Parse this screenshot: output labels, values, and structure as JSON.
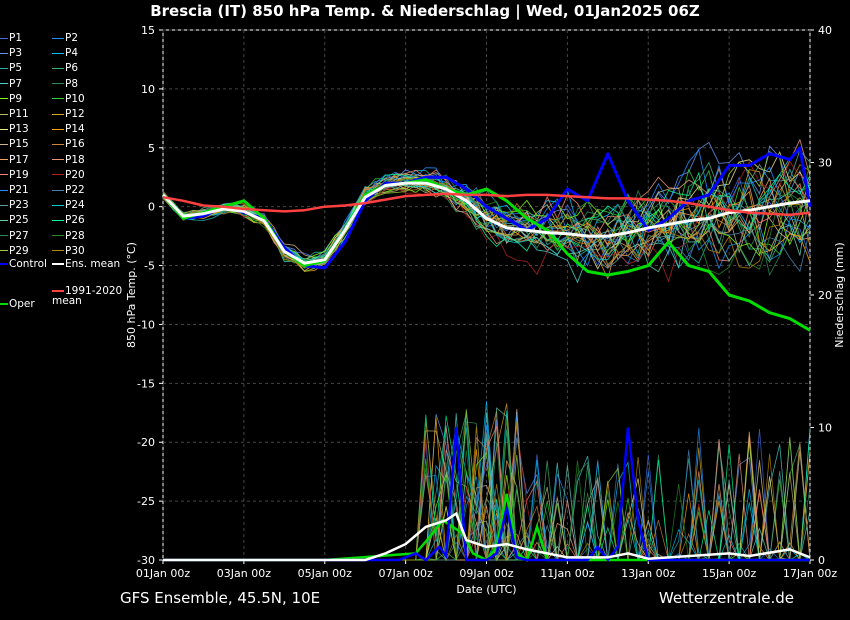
{
  "title": "Brescia  (IT)  850 hPa Temp. & Niederschlag | Wed, 01Jan2025 06Z",
  "footer_left": "GFS Ensemble, 45.5N, 10E",
  "footer_right": "Wetterzentrale.de",
  "chart_data": {
    "type": "line",
    "y_left_label": "850 hPa Temp. (°C)",
    "y_right_label": "Niederschlag (mm)",
    "x_label": "Date (UTC)",
    "y_left_range": [
      -30,
      15
    ],
    "y_left_ticks": [
      15,
      10,
      5,
      0,
      -5,
      -10,
      -15,
      -20,
      -25,
      -30
    ],
    "y_right_range": [
      0,
      40
    ],
    "y_right_ticks": [
      40,
      30,
      20,
      10,
      0
    ],
    "x_range_hours": [
      0,
      384
    ],
    "x_ticks": [
      {
        "h": 0,
        "label": "01Jan 00z"
      },
      {
        "h": 48,
        "label": "03Jan 00z"
      },
      {
        "h": 96,
        "label": "05Jan 00z"
      },
      {
        "h": 144,
        "label": "07Jan 00z"
      },
      {
        "h": 192,
        "label": "09Jan 00z"
      },
      {
        "h": 240,
        "label": "11Jan 00z"
      },
      {
        "h": 288,
        "label": "13Jan 00z"
      },
      {
        "h": 336,
        "label": "15Jan 00z"
      },
      {
        "h": 384,
        "label": "17Jan 00z"
      }
    ],
    "grid": true,
    "legend_position": "left",
    "members": [
      {
        "name": "P1",
        "color": "#4169e1"
      },
      {
        "name": "P2",
        "color": "#1e90ff"
      },
      {
        "name": "P3",
        "color": "#6495ed"
      },
      {
        "name": "P4",
        "color": "#00bfff"
      },
      {
        "name": "P5",
        "color": "#20b2aa"
      },
      {
        "name": "P6",
        "color": "#3cb371"
      },
      {
        "name": "P7",
        "color": "#48d1cc"
      },
      {
        "name": "P8",
        "color": "#2e8b57"
      },
      {
        "name": "P9",
        "color": "#7fff00"
      },
      {
        "name": "P10",
        "color": "#32cd32"
      },
      {
        "name": "P11",
        "color": "#bdb76b"
      },
      {
        "name": "P12",
        "color": "#daa520"
      },
      {
        "name": "P13",
        "color": "#f0e68c"
      },
      {
        "name": "P14",
        "color": "#ffa500"
      },
      {
        "name": "P15",
        "color": "#d2b48c"
      },
      {
        "name": "P16",
        "color": "#cd853f"
      },
      {
        "name": "P17",
        "color": "#f4a460"
      },
      {
        "name": "P18",
        "color": "#e9967a"
      },
      {
        "name": "P19",
        "color": "#fa8072"
      },
      {
        "name": "P20",
        "color": "#b22222"
      },
      {
        "name": "P21",
        "color": "#1e90ff"
      },
      {
        "name": "P22",
        "color": "#4682b4"
      },
      {
        "name": "P23",
        "color": "#5f9ea0"
      },
      {
        "name": "P24",
        "color": "#00ced1"
      },
      {
        "name": "P25",
        "color": "#66cdaa"
      },
      {
        "name": "P26",
        "color": "#00fa9a"
      },
      {
        "name": "P27",
        "color": "#2e8b57"
      },
      {
        "name": "P28",
        "color": "#228b22"
      },
      {
        "name": "P29",
        "color": "#9acd32"
      },
      {
        "name": "P30",
        "color": "#b8860b"
      }
    ],
    "special_legend": [
      {
        "name": "Control",
        "color": "#0000ff"
      },
      {
        "name": "Ens. mean",
        "color": "#ffffff"
      },
      {
        "name": "Oper",
        "color": "#00dd00"
      },
      {
        "name": "1991-2020 mean",
        "color": "#ff4040"
      }
    ],
    "series": [
      {
        "name": "Control",
        "color": "#0000ff",
        "width": 3,
        "points": [
          [
            0,
            1
          ],
          [
            12,
            -1
          ],
          [
            24,
            -0.8
          ],
          [
            36,
            0
          ],
          [
            48,
            -0.5
          ],
          [
            60,
            -1
          ],
          [
            72,
            -3.5
          ],
          [
            84,
            -5
          ],
          [
            96,
            -5.2
          ],
          [
            108,
            -3
          ],
          [
            120,
            0.5
          ],
          [
            132,
            2
          ],
          [
            144,
            2
          ],
          [
            156,
            2.5
          ],
          [
            168,
            2.5
          ],
          [
            180,
            1.5
          ],
          [
            192,
            0
          ],
          [
            204,
            -1
          ],
          [
            216,
            -2
          ],
          [
            228,
            -1
          ],
          [
            240,
            1.5
          ],
          [
            252,
            0.5
          ],
          [
            264,
            4.5
          ],
          [
            276,
            0.5
          ],
          [
            288,
            -2
          ],
          [
            300,
            -1
          ],
          [
            312,
            0.5
          ],
          [
            324,
            1
          ],
          [
            336,
            3.5
          ],
          [
            348,
            3.5
          ],
          [
            360,
            4.5
          ],
          [
            372,
            4
          ],
          [
            378,
            5
          ],
          [
            384,
            0
          ]
        ]
      },
      {
        "name": "Oper",
        "color": "#00dd00",
        "width": 3,
        "points": [
          [
            0,
            1
          ],
          [
            12,
            -1
          ],
          [
            24,
            -0.5
          ],
          [
            36,
            0
          ],
          [
            48,
            0.5
          ],
          [
            60,
            -1
          ],
          [
            72,
            -3.8
          ],
          [
            84,
            -5
          ],
          [
            96,
            -4.6
          ],
          [
            108,
            -2
          ],
          [
            120,
            1
          ],
          [
            132,
            1.8
          ],
          [
            144,
            2
          ],
          [
            156,
            2.3
          ],
          [
            168,
            1.5
          ],
          [
            180,
            1
          ],
          [
            192,
            1.5
          ],
          [
            204,
            0.5
          ],
          [
            216,
            -1
          ],
          [
            228,
            -2
          ],
          [
            240,
            -4
          ],
          [
            252,
            -5.5
          ],
          [
            264,
            -5.8
          ],
          [
            276,
            -5.5
          ],
          [
            288,
            -5
          ],
          [
            300,
            -3
          ],
          [
            312,
            -5
          ],
          [
            324,
            -5.5
          ],
          [
            336,
            -7.5
          ],
          [
            348,
            -8
          ],
          [
            360,
            -9
          ],
          [
            372,
            -9.5
          ],
          [
            384,
            -10.5
          ]
        ]
      },
      {
        "name": "Ens. mean",
        "color": "#ffffff",
        "width": 3,
        "points": [
          [
            0,
            1
          ],
          [
            12,
            -0.8
          ],
          [
            24,
            -0.6
          ],
          [
            36,
            -0.2
          ],
          [
            48,
            -0.4
          ],
          [
            60,
            -1.2
          ],
          [
            72,
            -3.8
          ],
          [
            84,
            -4.8
          ],
          [
            96,
            -4.5
          ],
          [
            108,
            -2
          ],
          [
            120,
            0.8
          ],
          [
            132,
            1.8
          ],
          [
            144,
            2
          ],
          [
            156,
            2
          ],
          [
            168,
            1.5
          ],
          [
            180,
            0.5
          ],
          [
            192,
            -1
          ],
          [
            204,
            -1.8
          ],
          [
            216,
            -2
          ],
          [
            228,
            -2.2
          ],
          [
            240,
            -2.3
          ],
          [
            252,
            -2.5
          ],
          [
            264,
            -2.5
          ],
          [
            276,
            -2.2
          ],
          [
            288,
            -1.8
          ],
          [
            300,
            -1.5
          ],
          [
            312,
            -1.2
          ],
          [
            324,
            -1
          ],
          [
            336,
            -0.5
          ],
          [
            348,
            -0.3
          ],
          [
            360,
            0
          ],
          [
            372,
            0.3
          ],
          [
            384,
            0.5
          ]
        ]
      },
      {
        "name": "1991-2020 mean",
        "color": "#ff4040",
        "width": 2.5,
        "points": [
          [
            0,
            0.8
          ],
          [
            12,
            0.5
          ],
          [
            24,
            0.1
          ],
          [
            36,
            0
          ],
          [
            48,
            -0.2
          ],
          [
            60,
            -0.3
          ],
          [
            72,
            -0.4
          ],
          [
            84,
            -0.3
          ],
          [
            96,
            0
          ],
          [
            108,
            0.1
          ],
          [
            120,
            0.3
          ],
          [
            132,
            0.6
          ],
          [
            144,
            0.9
          ],
          [
            156,
            1
          ],
          [
            168,
            1.1
          ],
          [
            180,
            1
          ],
          [
            192,
            1
          ],
          [
            204,
            0.9
          ],
          [
            216,
            1
          ],
          [
            228,
            1
          ],
          [
            240,
            0.9
          ],
          [
            252,
            0.8
          ],
          [
            264,
            0.7
          ],
          [
            276,
            0.7
          ],
          [
            288,
            0.6
          ],
          [
            300,
            0.5
          ],
          [
            312,
            0.3
          ],
          [
            324,
            0
          ],
          [
            336,
            -0.3
          ],
          [
            348,
            -0.5
          ],
          [
            360,
            -0.6
          ],
          [
            372,
            -0.7
          ],
          [
            384,
            -0.5
          ]
        ]
      }
    ]
  }
}
